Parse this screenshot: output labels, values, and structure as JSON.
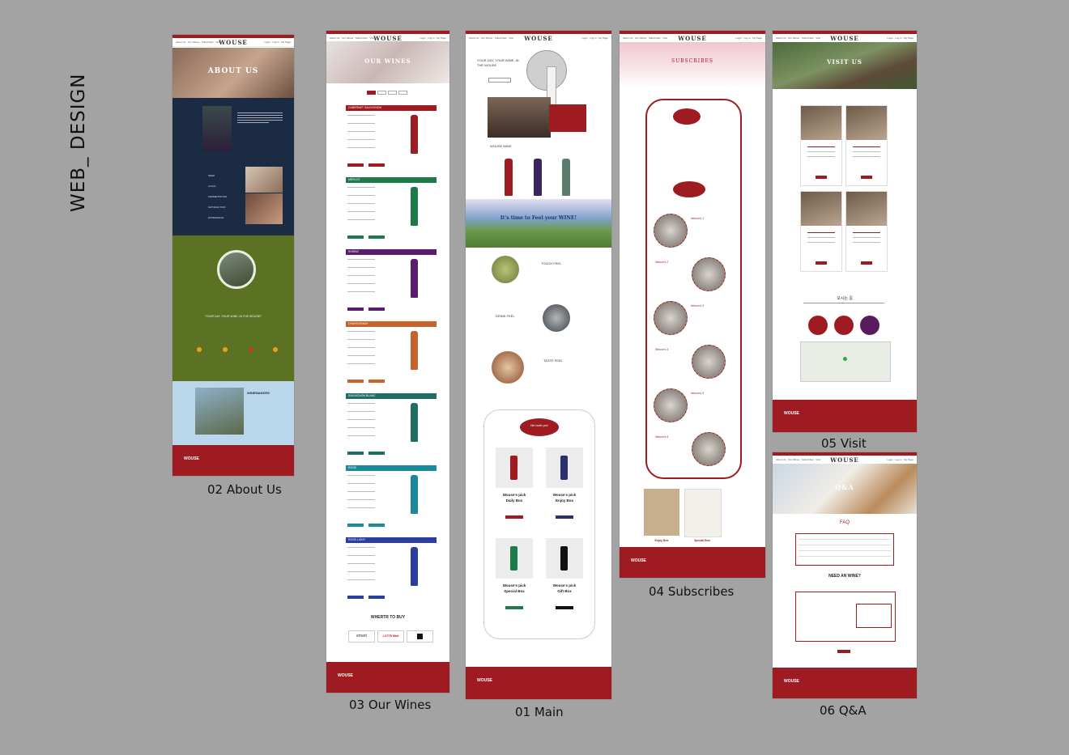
{
  "page_title": "WEB_ DESIGN",
  "brand_color": "#9e1b22",
  "captions": {
    "about": "02 About Us",
    "wines": "03 Our Wines",
    "main": "01 Main",
    "subscribes": "04 Subscribes",
    "visit": "05 Visit",
    "qa": "06 Q&A"
  },
  "logo": "WOUSE",
  "about": {
    "hero": "ABOUT US",
    "quote": "\"YOUR DAY, YOUR WINE, IN THE WOUSE!\"",
    "winemakers": "WINEMAKERS",
    "list": [
      "SEED",
      "LOCAL",
      "FERMENTATION",
      "SATISFACTION",
      "EXPERIENCE"
    ]
  },
  "wines": {
    "hero": "OUR WINES",
    "sections": [
      "CABERNET SAUVIGNON",
      "MERLOT",
      "SHIRAZ",
      "CHARDONNAY",
      "SAUVIGNON BLANC",
      "ROSE",
      "ROSE LIGHT"
    ],
    "where": "WHERTR TO BUY",
    "stores": [
      "emart",
      "LOTTE Mart"
    ]
  },
  "main": {
    "hero": "YOUR DAY, YOUR WINE, IN THE WOUSE",
    "banner": "It's time to Feel your WINE!",
    "feels": [
      "TOUCH FEEL",
      "DRINK FEEL",
      "TASTE FEEL"
    ],
    "invite": "We invite you!",
    "boxes": [
      {
        "pick": "Wouse's pick",
        "name": "Daily Box"
      },
      {
        "pick": "Wouse's pick",
        "name": "Enjoy Box"
      },
      {
        "pick": "Wouse's pick",
        "name": "Special Box"
      },
      {
        "pick": "Wouse's pick",
        "name": "Gift Box"
      }
    ]
  },
  "subscribes": {
    "hero": "SUBSCRIBES",
    "steps": [
      "Wouse's 1",
      "Wouse's 2",
      "Wouse's 3",
      "Wouse's 4",
      "Wouse's 5",
      "Wouse's 6"
    ],
    "boxes": [
      "Enjoy Box",
      "Special Box"
    ]
  },
  "visit": {
    "hero": "VISIT US",
    "title": "오시는 길"
  },
  "qa": {
    "hero": "Q&A",
    "faq": "FAQ",
    "need": "NEED AN WINE?"
  }
}
